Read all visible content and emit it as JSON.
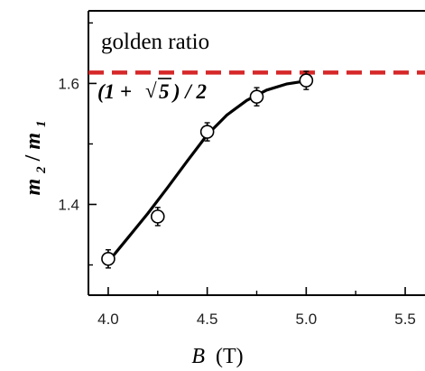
{
  "chart_data": {
    "type": "scatter",
    "xlabel_var": "B",
    "xlabel_unit": "(T)",
    "ylabel_main": "m",
    "ylabel_sub_num": "2",
    "ylabel_slash": "/",
    "ylabel_sub_den": "1",
    "xlim": [
      3.9,
      5.6
    ],
    "ylim": [
      1.25,
      1.72
    ],
    "x_ticks": [
      4.0,
      4.5,
      5.0,
      5.5
    ],
    "x_tick_labels": [
      "4.0",
      "4.5",
      "5.0",
      "5.5"
    ],
    "x_minor_ticks": [
      4.25,
      4.75,
      5.25
    ],
    "y_ticks": [
      1.4,
      1.6
    ],
    "y_tick_labels": [
      "1.4",
      "1.6"
    ],
    "y_minor_ticks": [
      1.3,
      1.5,
      1.7
    ],
    "grid": false,
    "series": [
      {
        "marker": "open-circle",
        "x": [
          4.0,
          4.25,
          4.5,
          4.75,
          5.0
        ],
        "y": [
          1.31,
          1.38,
          1.52,
          1.578,
          1.605
        ],
        "yerr": [
          0.015,
          0.015,
          0.015,
          0.015,
          0.015
        ]
      }
    ],
    "fit_curve": {
      "x": [
        4.0,
        4.1,
        4.2,
        4.3,
        4.4,
        4.5,
        4.6,
        4.7,
        4.8,
        4.9,
        5.0
      ],
      "y": [
        1.305,
        1.345,
        1.385,
        1.428,
        1.472,
        1.515,
        1.548,
        1.572,
        1.589,
        1.599,
        1.604
      ],
      "color": "#000000"
    },
    "reference_line": {
      "y": 1.618,
      "color": "#d62728",
      "style": "dashed",
      "label": "golden ratio",
      "formula_open": "(1 +",
      "formula_radical": "√",
      "formula_radicand": "5",
      "formula_close": ") / 2"
    }
  }
}
